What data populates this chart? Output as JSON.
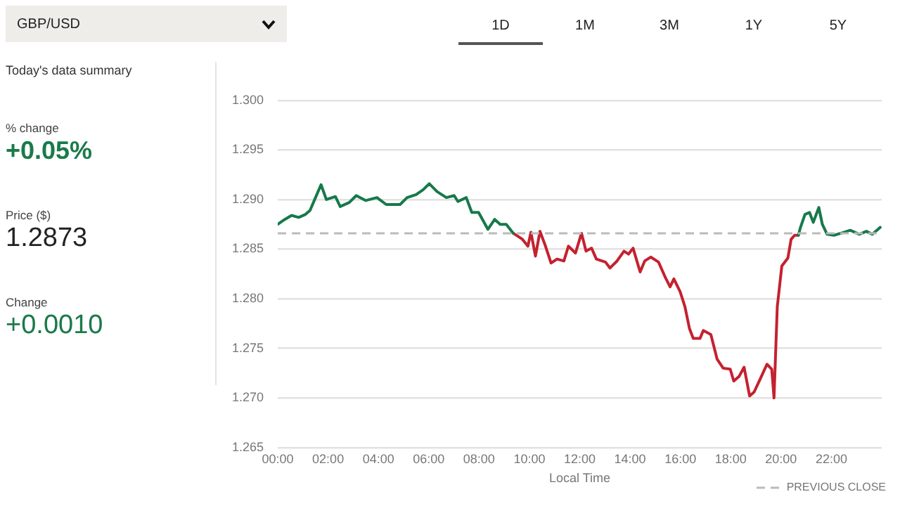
{
  "chart_data": {
    "type": "line",
    "title": "GBP/USD",
    "xlabel": "Local Time",
    "annotations": [
      "1D",
      "1M",
      "3M",
      "1Y",
      "5Y",
      "Today's data summary",
      "% change",
      "+0.05%",
      "Price ($)",
      "1.2873",
      "Change",
      "+0.0010"
    ],
    "x": [
      0,
      0.28,
      0.55,
      0.83,
      1.1,
      1.28,
      1.5,
      1.72,
      1.93,
      2.29,
      2.48,
      2.84,
      3.12,
      3.49,
      3.94,
      4.31,
      4.86,
      5.14,
      5.5,
      5.78,
      6.02,
      6.33,
      6.7,
      7.01,
      7.16,
      7.49,
      7.71,
      7.98,
      8.35,
      8.62,
      8.84,
      9.08,
      9.36,
      9.72,
      9.94,
      10.06,
      10.24,
      10.42,
      10.64,
      10.86,
      11.1,
      11.37,
      11.55,
      11.83,
      12.07,
      12.25,
      12.47,
      12.66,
      13.02,
      13.2,
      13.48,
      13.76,
      13.94,
      14.12,
      14.4,
      14.58,
      14.82,
      15.13,
      15.41,
      15.59,
      15.74,
      15.99,
      16.18,
      16.36,
      16.51,
      16.78,
      16.91,
      17.21,
      17.46,
      17.7,
      17.98,
      18.12,
      18.34,
      18.53,
      18.75,
      18.93,
      19.17,
      19.44,
      19.63,
      19.72,
      19.85,
      20.03,
      20.27,
      20.4,
      20.54,
      20.69,
      20.76,
      20.95,
      21.13,
      21.28,
      21.5,
      21.64,
      21.83,
      22.1,
      22.38,
      22.75,
      23.11,
      23.39,
      23.63,
      23.94
    ],
    "series": [
      {
        "color": "#17794a",
        "values": [
          1.2875,
          1.288,
          1.2884,
          1.2882,
          1.2885,
          1.2889,
          1.2902,
          1.2915,
          1.29,
          1.2903,
          1.2893,
          1.2897,
          1.2904,
          1.2899,
          1.2902,
          1.2895,
          1.2895,
          1.2902,
          1.2905,
          1.291,
          1.2916,
          1.2908,
          1.2902,
          1.2904,
          1.2898,
          1.2902,
          1.2887,
          1.2887,
          1.287,
          1.288,
          1.2875,
          1.2875,
          1.2866,
          null,
          null,
          null,
          null,
          null,
          null,
          null,
          null,
          null,
          null,
          null,
          null,
          null,
          null,
          null,
          null,
          null,
          null,
          null,
          null,
          null,
          null,
          null,
          null,
          null,
          null,
          null,
          null,
          null,
          null,
          null,
          null,
          null,
          null,
          null,
          null,
          null,
          null,
          null,
          null,
          null,
          null,
          null,
          null,
          null,
          null,
          null,
          null,
          null,
          null,
          null,
          null,
          1.2864,
          1.2871,
          1.2885,
          1.2887,
          1.2877,
          1.2892,
          1.2875,
          1.2865,
          1.2864,
          1.2866,
          1.2869,
          1.2865,
          1.2868,
          1.2865,
          1.2872
        ]
      },
      {
        "color": "#c4212f",
        "values": [
          null,
          null,
          null,
          null,
          null,
          null,
          null,
          null,
          null,
          null,
          null,
          null,
          null,
          null,
          null,
          null,
          null,
          null,
          null,
          null,
          null,
          null,
          null,
          null,
          null,
          null,
          null,
          null,
          null,
          null,
          null,
          null,
          1.2866,
          1.286,
          1.2853,
          1.2867,
          1.2843,
          1.2868,
          1.2853,
          1.2836,
          1.284,
          1.2838,
          1.2853,
          1.2846,
          1.2866,
          1.2848,
          1.2851,
          1.284,
          1.2837,
          1.2831,
          1.2838,
          1.2848,
          1.2845,
          1.2851,
          1.2827,
          1.2838,
          1.2842,
          1.2837,
          1.2821,
          1.2812,
          1.282,
          1.2807,
          1.2792,
          1.277,
          1.276,
          1.276,
          1.2768,
          1.2764,
          1.2739,
          1.273,
          1.2729,
          1.2717,
          1.2722,
          1.2731,
          1.2702,
          1.2706,
          1.2719,
          1.2734,
          1.2729,
          1.27,
          1.2792,
          1.2833,
          1.2841,
          1.286,
          1.2864,
          1.2864,
          null,
          null,
          null,
          null,
          null,
          null,
          null,
          null,
          null,
          null,
          null,
          null,
          null,
          null
        ]
      }
    ],
    "xlim": [
      0,
      24
    ],
    "xticks": [
      {
        "value": 0,
        "label": "00:00"
      },
      {
        "value": 2,
        "label": "02:00"
      },
      {
        "value": 4,
        "label": "04:00"
      },
      {
        "value": 6,
        "label": "06:00"
      },
      {
        "value": 8,
        "label": "08:00"
      },
      {
        "value": 10,
        "label": "10:00"
      },
      {
        "value": 12,
        "label": "12:00"
      },
      {
        "value": 14,
        "label": "14:00"
      },
      {
        "value": 16,
        "label": "16:00"
      },
      {
        "value": 18,
        "label": "18:00"
      },
      {
        "value": 20,
        "label": "20:00"
      },
      {
        "value": 22,
        "label": "22:00"
      }
    ],
    "ylim": [
      1.265,
      1.3
    ],
    "yticks": [
      {
        "value": 1.265,
        "label": "1.265"
      },
      {
        "value": 1.27,
        "label": "1.270"
      },
      {
        "value": 1.275,
        "label": "1.275"
      },
      {
        "value": 1.28,
        "label": "1.280"
      },
      {
        "value": 1.285,
        "label": "1.285"
      },
      {
        "value": 1.29,
        "label": "1.290"
      },
      {
        "value": 1.295,
        "label": "1.295"
      },
      {
        "value": 1.3,
        "label": "1.300"
      }
    ],
    "ref_lines": [
      {
        "axis": "y",
        "value": 1.2866,
        "label": "PREVIOUS CLOSE",
        "color": "#bbbbbb",
        "line_style": "dashed"
      }
    ],
    "grid": "y",
    "legend": "bottom right",
    "marker": "none",
    "line_style": "solid"
  }
}
